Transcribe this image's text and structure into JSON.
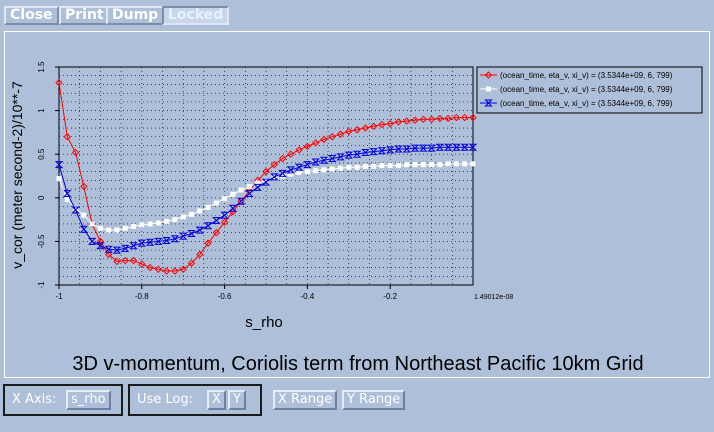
{
  "toolbar": {
    "close": "Close",
    "print": "Print",
    "dump": "Dump",
    "locked": "Locked"
  },
  "plot": {
    "title": "3D v-momentum, Coriolis term from Northeast Pacific 10km Grid",
    "xlabel": "s_rho",
    "ylabel": "v_cor (meter second-2)/10**-7",
    "x_end_label": "1.49012e-08"
  },
  "chart_data": {
    "type": "line",
    "xlim": [
      -1,
      0
    ],
    "ylim": [
      -1,
      1.5
    ],
    "grid": true,
    "legend_placement": "top-right",
    "x_tick_labels": [
      "-1",
      "-0.8",
      "-0.6",
      "-0.4",
      "-0.2"
    ],
    "y_tick_labels": [
      "-1",
      "-0.5",
      "0",
      "0.5",
      "1",
      "1.5"
    ],
    "series": [
      {
        "name": "(ocean_time, eta_v, xi_v) = (3.5344e+09, 6, 799)",
        "color": "#ff0000",
        "marker": "diamond",
        "x": [
          -1.0,
          -0.98,
          -0.96,
          -0.94,
          -0.92,
          -0.9,
          -0.88,
          -0.86,
          -0.84,
          -0.82,
          -0.8,
          -0.78,
          -0.76,
          -0.74,
          -0.72,
          -0.7,
          -0.68,
          -0.66,
          -0.64,
          -0.62,
          -0.6,
          -0.58,
          -0.56,
          -0.54,
          -0.52,
          -0.5,
          -0.48,
          -0.46,
          -0.44,
          -0.42,
          -0.4,
          -0.38,
          -0.36,
          -0.34,
          -0.32,
          -0.3,
          -0.28,
          -0.26,
          -0.24,
          -0.22,
          -0.2,
          -0.18,
          -0.16,
          -0.14,
          -0.12,
          -0.1,
          -0.08,
          -0.06,
          -0.04,
          -0.02,
          0.0
        ],
        "y": [
          1.32,
          0.7,
          0.52,
          0.13,
          -0.3,
          -0.5,
          -0.65,
          -0.73,
          -0.72,
          -0.72,
          -0.76,
          -0.8,
          -0.82,
          -0.84,
          -0.84,
          -0.82,
          -0.75,
          -0.65,
          -0.52,
          -0.4,
          -0.28,
          -0.16,
          -0.04,
          0.08,
          0.2,
          0.3,
          0.38,
          0.45,
          0.5,
          0.55,
          0.59,
          0.63,
          0.67,
          0.7,
          0.73,
          0.76,
          0.78,
          0.8,
          0.82,
          0.84,
          0.85,
          0.87,
          0.88,
          0.89,
          0.9,
          0.9,
          0.91,
          0.91,
          0.92,
          0.92,
          0.92
        ]
      },
      {
        "name": "(ocean_time, eta_v, xi_v) = (3.5344e+09, 6, 799)",
        "color": "#ffffff",
        "marker": "square",
        "x": [
          -1.0,
          -0.98,
          -0.96,
          -0.94,
          -0.92,
          -0.9,
          -0.88,
          -0.86,
          -0.84,
          -0.82,
          -0.8,
          -0.78,
          -0.76,
          -0.74,
          -0.72,
          -0.7,
          -0.68,
          -0.66,
          -0.64,
          -0.62,
          -0.6,
          -0.58,
          -0.56,
          -0.54,
          -0.52,
          -0.5,
          -0.48,
          -0.46,
          -0.44,
          -0.42,
          -0.4,
          -0.38,
          -0.36,
          -0.34,
          -0.32,
          -0.3,
          -0.28,
          -0.26,
          -0.24,
          -0.22,
          -0.2,
          -0.18,
          -0.16,
          -0.14,
          -0.12,
          -0.1,
          -0.08,
          -0.06,
          -0.04,
          -0.02,
          0.0
        ],
        "y": [
          0.22,
          -0.02,
          -0.12,
          -0.2,
          -0.3,
          -0.35,
          -0.37,
          -0.37,
          -0.35,
          -0.33,
          -0.31,
          -0.3,
          -0.29,
          -0.27,
          -0.25,
          -0.22,
          -0.19,
          -0.15,
          -0.11,
          -0.06,
          -0.01,
          0.04,
          0.09,
          0.13,
          0.17,
          0.2,
          0.23,
          0.25,
          0.27,
          0.29,
          0.3,
          0.31,
          0.32,
          0.33,
          0.34,
          0.35,
          0.35,
          0.36,
          0.36,
          0.37,
          0.37,
          0.37,
          0.38,
          0.38,
          0.38,
          0.38,
          0.38,
          0.39,
          0.39,
          0.39,
          0.39
        ]
      },
      {
        "name": "(ocean_time, eta_v, xi_v) = (3.5344e+09, 6, 799)",
        "color": "#0000dd",
        "marker": "bowtie",
        "x": [
          -1.0,
          -0.98,
          -0.96,
          -0.94,
          -0.92,
          -0.9,
          -0.88,
          -0.86,
          -0.84,
          -0.82,
          -0.8,
          -0.78,
          -0.76,
          -0.74,
          -0.72,
          -0.7,
          -0.68,
          -0.66,
          -0.64,
          -0.62,
          -0.6,
          -0.58,
          -0.56,
          -0.54,
          -0.52,
          -0.5,
          -0.48,
          -0.46,
          -0.44,
          -0.42,
          -0.4,
          -0.38,
          -0.36,
          -0.34,
          -0.32,
          -0.3,
          -0.28,
          -0.26,
          -0.24,
          -0.22,
          -0.2,
          -0.18,
          -0.16,
          -0.14,
          -0.12,
          -0.1,
          -0.08,
          -0.06,
          -0.04,
          -0.02,
          0.0
        ],
        "y": [
          0.38,
          0.05,
          -0.14,
          -0.36,
          -0.5,
          -0.55,
          -0.59,
          -0.6,
          -0.58,
          -0.55,
          -0.52,
          -0.51,
          -0.5,
          -0.49,
          -0.47,
          -0.44,
          -0.41,
          -0.37,
          -0.32,
          -0.26,
          -0.2,
          -0.12,
          -0.04,
          0.05,
          0.12,
          0.18,
          0.24,
          0.28,
          0.32,
          0.35,
          0.38,
          0.41,
          0.43,
          0.45,
          0.47,
          0.49,
          0.5,
          0.52,
          0.53,
          0.54,
          0.55,
          0.56,
          0.56,
          0.57,
          0.57,
          0.57,
          0.58,
          0.58,
          0.58,
          0.58,
          0.58
        ]
      }
    ]
  },
  "controls": {
    "x_axis_label": "X Axis:",
    "x_axis_value": "s_rho",
    "use_log_label": "Use Log:",
    "log_x": "X",
    "log_y": "Y",
    "x_range": "X Range",
    "y_range": "Y Range"
  }
}
